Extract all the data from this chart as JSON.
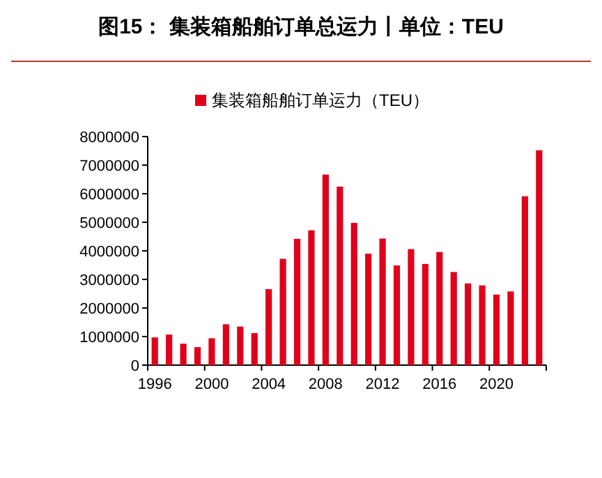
{
  "chart_data": {
    "type": "bar",
    "title": "图15：  集装箱船舶订单总运力丨单位：TEU",
    "categories": [
      "1996",
      null,
      null,
      null,
      "2000",
      null,
      null,
      null,
      "2004",
      null,
      null,
      null,
      "2008",
      null,
      null,
      null,
      "2012",
      null,
      null,
      null,
      "2016",
      null,
      null,
      null,
      "2020",
      null,
      null,
      null
    ],
    "series": [
      {
        "name": "集装箱船舶订单运力（TEU）",
        "color": "#e0001b",
        "values": [
          970000,
          1070000,
          750000,
          630000,
          940000,
          1430000,
          1350000,
          1120000,
          2660000,
          3720000,
          4420000,
          4720000,
          6670000,
          6250000,
          4980000,
          3900000,
          4430000,
          3490000,
          4060000,
          3540000,
          3960000,
          3260000,
          2860000,
          2790000,
          2470000,
          2580000,
          5910000,
          7520000
        ]
      }
    ],
    "ylim": [
      0,
      8000000
    ],
    "yticks": [
      0,
      1000000,
      2000000,
      3000000,
      4000000,
      5000000,
      6000000,
      7000000,
      8000000
    ],
    "legend": "top",
    "grid": false
  }
}
